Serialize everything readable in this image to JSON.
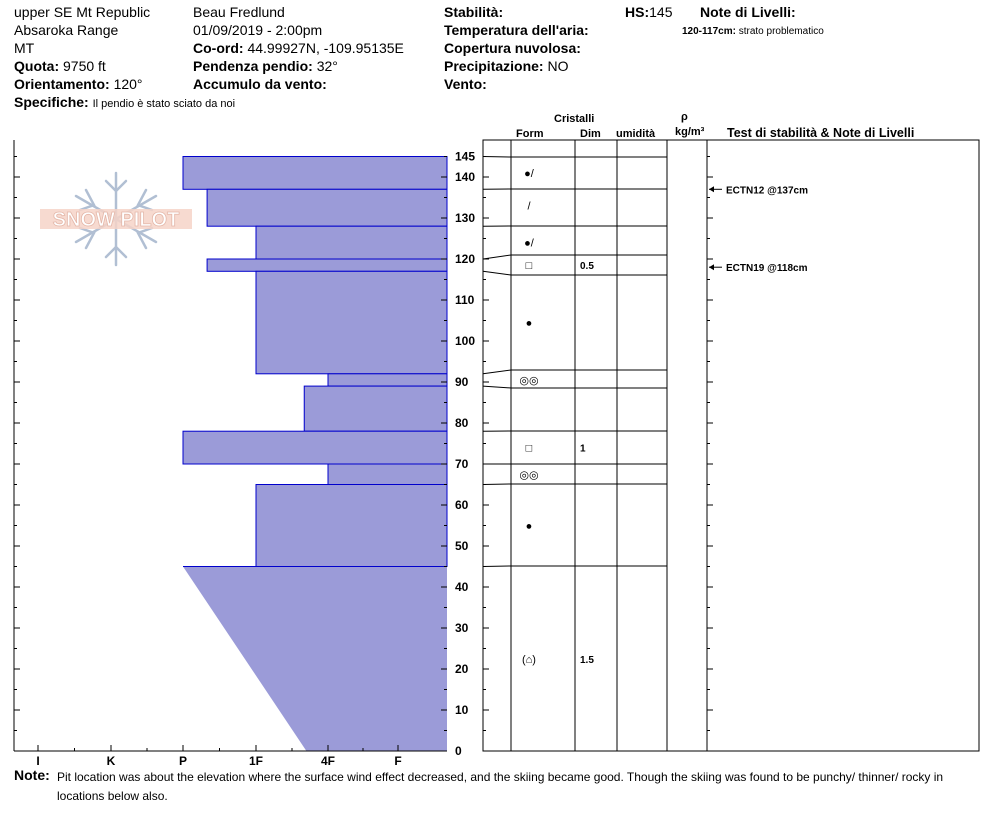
{
  "header": {
    "location": "upper SE Mt Republic",
    "range": "Absaroka Range",
    "state": "MT",
    "elevation_label": "Quota:",
    "elevation": "9750 ft",
    "aspect_label": "Orientamento:",
    "aspect": "120°",
    "specifics_label": "Specifiche:",
    "specifics": "Il pendio è stato sciato da noi",
    "observer": "Beau  Fredlund",
    "datetime": "01/09/2019 - 2:00pm",
    "coords_label": "Co-ord:",
    "coords": "44.99927N, -109.95135E",
    "slope_label": "Pendenza pendio:",
    "slope": "32°",
    "wind_loading_label": "Accumulo da vento:",
    "wind_loading": "",
    "stability_label": "Stabilità:",
    "stability": "",
    "air_temp_label": "Temperatura dell'aria:",
    "air_temp": "",
    "sky_label": "Copertura nuvolosa:",
    "sky": "",
    "precip_label": "Precipitazione:",
    "precip": "NO",
    "wind_label": "Vento:",
    "wind": "",
    "hs_label": "HS:",
    "hs": "145",
    "layer_notes_label": "Note di Livelli:",
    "layer_note_range": "120-117cm:",
    "layer_note_text": "strato problematico"
  },
  "columns": {
    "crystals": "Cristalli",
    "form": "Form",
    "size": "Dim",
    "moisture": "umidità",
    "rho": "ρ",
    "density_unit": "kg/m³",
    "tests": "Test di stabilità & Note di Livelli"
  },
  "logo": {
    "text": "SNOW PILOT"
  },
  "note": {
    "label": "Note:",
    "text": "Pit location was about the elevation where the surface wind effect decreased, and the skiing became good.  Though the skiing was found to be punchy/ thinner/ rocky in locations below also."
  },
  "colors": {
    "hardness_fill": "#9b9bd8",
    "hardness_stroke": "#0000cc"
  },
  "chart_data": {
    "type": "bar",
    "y_axis": {
      "label": "",
      "range": [
        0,
        145
      ],
      "ticks": [
        0,
        10,
        20,
        30,
        40,
        50,
        60,
        70,
        80,
        90,
        100,
        110,
        120,
        130,
        140,
        145
      ]
    },
    "x_axis": {
      "label": "",
      "categories": [
        "I",
        "K",
        "P",
        "1F",
        "4F",
        "F"
      ],
      "reversed": true
    },
    "hardness_layers": [
      {
        "top": 145,
        "bottom": 137,
        "hardness": "4F"
      },
      {
        "top": 137,
        "bottom": 128,
        "hardness": "4F+"
      },
      {
        "top": 128,
        "bottom": 120,
        "hardness": "1F"
      },
      {
        "top": 120,
        "bottom": 117,
        "hardness": "4F+"
      },
      {
        "top": 117,
        "bottom": 92,
        "hardness": "1F"
      },
      {
        "top": 92,
        "bottom": 89,
        "hardness": "P"
      },
      {
        "top": 89,
        "bottom": 78,
        "hardness": "1F-"
      },
      {
        "top": 78,
        "bottom": 70,
        "hardness": "4F"
      },
      {
        "top": 70,
        "bottom": 65,
        "hardness": "P"
      },
      {
        "top": 65,
        "bottom": 45,
        "hardness": "1F"
      },
      {
        "top": 45,
        "bottom": 0,
        "hardness": "4F to 1F-",
        "gradient": {
          "at_top": 4,
          "at_bottom": 2.3
        }
      }
    ],
    "hardness_values": [
      {
        "top": 145,
        "bottom": 137,
        "value": 4
      },
      {
        "top": 137,
        "bottom": 128,
        "value": 3.67
      },
      {
        "top": 128,
        "bottom": 120,
        "value": 3
      },
      {
        "top": 120,
        "bottom": 117,
        "value": 3.67
      },
      {
        "top": 117,
        "bottom": 92,
        "value": 3
      },
      {
        "top": 92,
        "bottom": 89,
        "value": 2
      },
      {
        "top": 89,
        "bottom": 78,
        "value": 2.33
      },
      {
        "top": 78,
        "bottom": 70,
        "value": 4
      },
      {
        "top": 70,
        "bottom": 65,
        "value": 2
      },
      {
        "top": 65,
        "bottom": 45,
        "value": 3
      }
    ],
    "layer_boundaries": [
      145,
      137,
      128,
      120,
      117,
      92,
      89,
      78,
      70,
      65,
      45,
      0
    ],
    "crystals": [
      {
        "height": 141,
        "form": "●/",
        "size": ""
      },
      {
        "height": 133,
        "form": "/",
        "size": ""
      },
      {
        "height": 124,
        "form": "●/",
        "size": ""
      },
      {
        "height": 118.5,
        "form": "□",
        "size": "0.5"
      },
      {
        "height": 104.5,
        "form": "●",
        "size": ""
      },
      {
        "height": 90.5,
        "form": "◎◎",
        "size": ""
      },
      {
        "height": 74,
        "form": "□",
        "size": "1"
      },
      {
        "height": 67.5,
        "form": "◎◎",
        "size": ""
      },
      {
        "height": 55,
        "form": "●",
        "size": ""
      },
      {
        "height": 22.5,
        "form": "(⌂)",
        "size": "1.5"
      }
    ],
    "tests": [
      {
        "height": 137,
        "text": "ECTN12 @137cm"
      },
      {
        "height": 118,
        "text": "ECTN19 @118cm"
      }
    ]
  }
}
